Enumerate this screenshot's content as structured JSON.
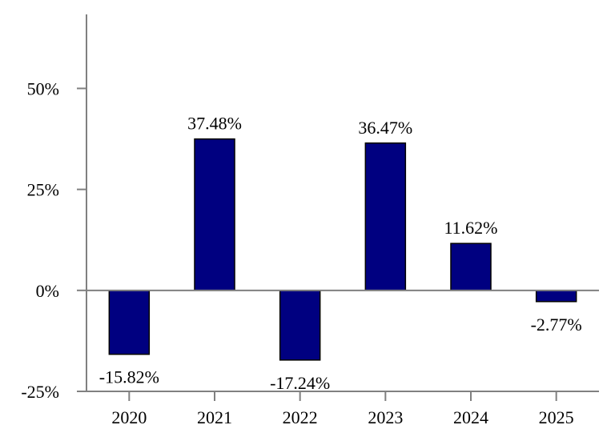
{
  "chart_data": {
    "type": "bar",
    "title": "",
    "xlabel": "",
    "ylabel": "",
    "categories": [
      "2020",
      "2021",
      "2022",
      "2023",
      "2024",
      "2025"
    ],
    "values": [
      -15.82,
      37.48,
      -17.24,
      36.47,
      11.62,
      -2.77
    ],
    "data_labels": [
      "-15.82%",
      "37.48%",
      "-17.24%",
      "36.47%",
      "11.62%",
      "-2.77%"
    ],
    "ylim": [
      -25,
      60
    ],
    "yticks": [
      -25,
      0,
      25,
      50
    ],
    "ytick_labels": [
      "-25%",
      "0%",
      "25%",
      "50%"
    ],
    "grid": false,
    "legend": "none",
    "colors": {
      "bar": "#000080",
      "bar_stroke": "#000000",
      "axis": "#808080"
    }
  }
}
